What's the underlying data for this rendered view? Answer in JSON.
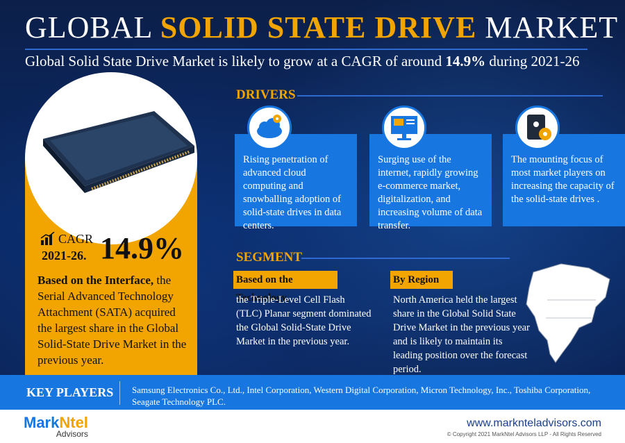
{
  "header": {
    "title_pre": "GLOBAL ",
    "title_highlight": "SOLID STATE DRIVE",
    "title_post": " MARKET",
    "subtitle_pre": "Global Solid State Drive Market is likely to grow at a CAGR of around ",
    "subtitle_value": "14.9%",
    "subtitle_post": " during 2021-26"
  },
  "cagr": {
    "label": "CAGR",
    "period": "2021-26.",
    "value": "14.9%"
  },
  "left_text": {
    "bold": "Based on the Interface,",
    "rest": " the Serial Advanced Technology Attachment (SATA) acquired the largest share in the Global Solid-State Drive Market in the previous year."
  },
  "drivers": {
    "title": "DRIVERS",
    "items": [
      {
        "icon": "cloud-gear-icon",
        "text": "Rising penetration of advanced cloud computing and snowballing adoption of solid-state drives in data centers."
      },
      {
        "icon": "ecommerce-monitor-icon",
        "text": "Surging use of the internet, rapidly growing e-commerce market, digitalization, and increasing volume of data transfer."
      },
      {
        "icon": "storage-drive-icon",
        "text": "The mounting focus of most market players on increasing the capacity of the solid-state drives ."
      }
    ]
  },
  "segment": {
    "title": "SEGMENT",
    "technology_label": "Based on the Technology,",
    "technology_text": "the Triple-Level Cell Flash (TLC) Planar segment dominated the Global Solid-State Drive Market in the previous year.",
    "region_label": "By Region",
    "region_text": "North America held the largest share in the Global Solid State Drive Market in the previous year and is likely to maintain its leading position over the forecast period."
  },
  "key_players": {
    "label": "KEY PLAYERS",
    "text": "Samsung Electronics Co., Ltd., Intel Corporation, Western Digital Corporation, Micron Technology, Inc., Toshiba Corporation, Seagate Technology PLC."
  },
  "footer": {
    "logo_a": "Mark",
    "logo_b": "Ntel",
    "logo_c": "Advisors",
    "website": "www.marknteladvisors.com",
    "copyright": "© Copyright 2021 MarkNtel Advisors LLP - All Rights Reserved"
  },
  "colors": {
    "accent": "#f2a400",
    "blue": "#1776e0",
    "navy": "#0a2a66"
  }
}
